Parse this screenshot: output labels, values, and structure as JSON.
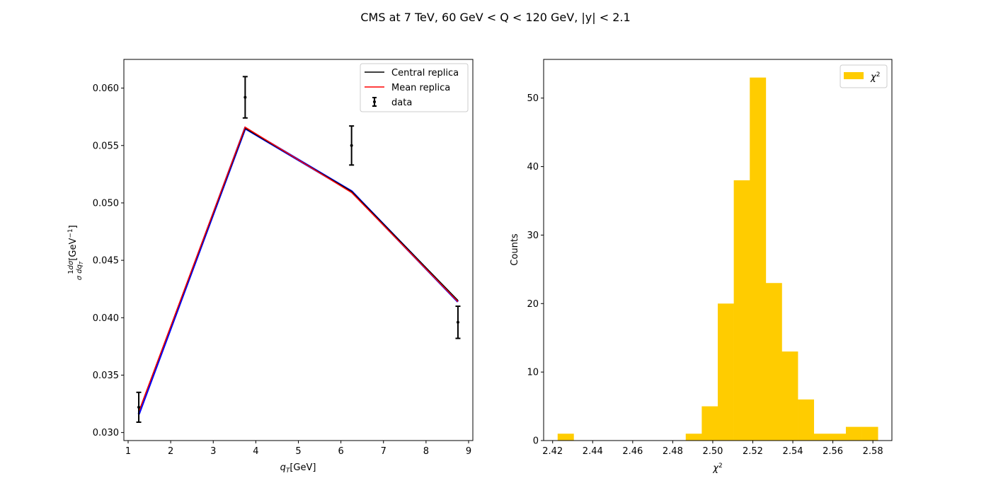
{
  "figure": {
    "title": "CMS at 7 TeV, 60 GeV < Q < 120 GeV, |y| < 2.1"
  },
  "chart_data": [
    {
      "type": "line",
      "xlabel": "q_T [GeV]",
      "ylabel": "(1/σ) dσ/dq_T [GeV⁻¹]",
      "xlim": [
        0.9,
        9.1
      ],
      "ylim": [
        0.0293,
        0.0625
      ],
      "xticks": [
        1,
        2,
        3,
        4,
        5,
        6,
        7,
        8,
        9
      ],
      "yticks": [
        0.03,
        0.035,
        0.04,
        0.045,
        0.05,
        0.055,
        0.06
      ],
      "ytick_labels": [
        "0.030",
        "0.035",
        "0.040",
        "0.045",
        "0.050",
        "0.055",
        "0.060"
      ],
      "grid": false,
      "legend_position": "upper right",
      "x": [
        1.25,
        3.75,
        6.25,
        8.75
      ],
      "series": [
        {
          "name": "Central replica",
          "kind": "line",
          "color": "#000000",
          "values": [
            0.0318,
            0.0565,
            0.051,
            0.0415
          ]
        },
        {
          "name": "Mean replica",
          "kind": "line",
          "color": "#ff0000",
          "values": [
            0.0318,
            0.0566,
            0.0509,
            0.0414
          ]
        },
        {
          "name": "",
          "kind": "band",
          "color": "#0000ff",
          "values": [
            0.0316,
            0.0565,
            0.051,
            0.0414
          ]
        },
        {
          "name": "data",
          "kind": "errorbar",
          "color": "#000000",
          "values": [
            0.0322,
            0.0592,
            0.055,
            0.0396
          ],
          "errors": [
            0.0013,
            0.0018,
            0.0017,
            0.0014
          ]
        }
      ]
    },
    {
      "type": "bar",
      "subtype": "histogram",
      "xlabel": "χ²",
      "ylabel": "Counts",
      "xlim": [
        2.4155,
        2.5895
      ],
      "ylim": [
        0,
        55.65
      ],
      "xticks": [
        2.42,
        2.44,
        2.46,
        2.48,
        2.5,
        2.52,
        2.54,
        2.56,
        2.58
      ],
      "xtick_labels": [
        "2.42",
        "2.44",
        "2.46",
        "2.48",
        "2.50",
        "2.52",
        "2.54",
        "2.56",
        "2.58"
      ],
      "yticks": [
        0,
        10,
        20,
        30,
        40,
        50
      ],
      "grid": false,
      "legend_position": "upper right",
      "legend_label": "χ²",
      "color": "#ffcc00",
      "bin_start": 2.4225,
      "bin_width": 0.008,
      "counts": [
        1,
        0,
        0,
        0,
        0,
        0,
        0,
        0,
        1,
        5,
        20,
        38,
        53,
        23,
        13,
        6,
        1,
        1,
        2,
        2
      ]
    }
  ]
}
